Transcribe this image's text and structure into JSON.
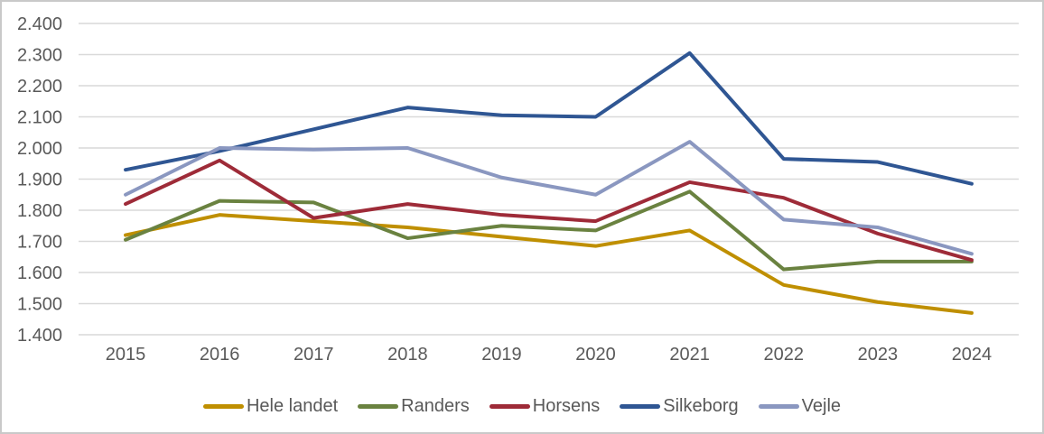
{
  "chart_data": {
    "type": "line",
    "x": [
      "2015",
      "2016",
      "2017",
      "2018",
      "2019",
      "2020",
      "2021",
      "2022",
      "2023",
      "2024"
    ],
    "series": [
      {
        "name": "Hele landet",
        "color": "#BF8F00",
        "values": [
          1720,
          1785,
          1765,
          1745,
          1715,
          1685,
          1735,
          1560,
          1505,
          1470
        ]
      },
      {
        "name": "Randers",
        "color": "#6A8240",
        "values": [
          1705,
          1830,
          1825,
          1710,
          1750,
          1735,
          1860,
          1610,
          1635,
          1635
        ]
      },
      {
        "name": "Horsens",
        "color": "#9E2B38",
        "values": [
          1820,
          1960,
          1775,
          1820,
          1785,
          1765,
          1890,
          1840,
          1725,
          1640
        ]
      },
      {
        "name": "Silkeborg",
        "color": "#2F5693",
        "values": [
          1930,
          1990,
          2060,
          2130,
          2105,
          2100,
          2305,
          1965,
          1955,
          1885
        ]
      },
      {
        "name": "Vejle",
        "color": "#8A97C0",
        "values": [
          1850,
          2000,
          1995,
          2000,
          1905,
          1850,
          2020,
          1770,
          1745,
          1660
        ]
      }
    ],
    "title": "",
    "xlabel": "",
    "ylabel": "",
    "ylim": [
      1400,
      2400
    ],
    "y_tick_labels": [
      "2.400",
      "2.300",
      "2.200",
      "2.100",
      "2.000",
      "1.900",
      "1.800",
      "1.700",
      "1.600",
      "1.500",
      "1.400"
    ],
    "grid": true,
    "legend_position": "bottom"
  },
  "styles": {
    "text_color": "#595959",
    "gridline_color": "#D9D9D9",
    "border_color": "#C9C9C9",
    "background": "#FFFFFF"
  }
}
